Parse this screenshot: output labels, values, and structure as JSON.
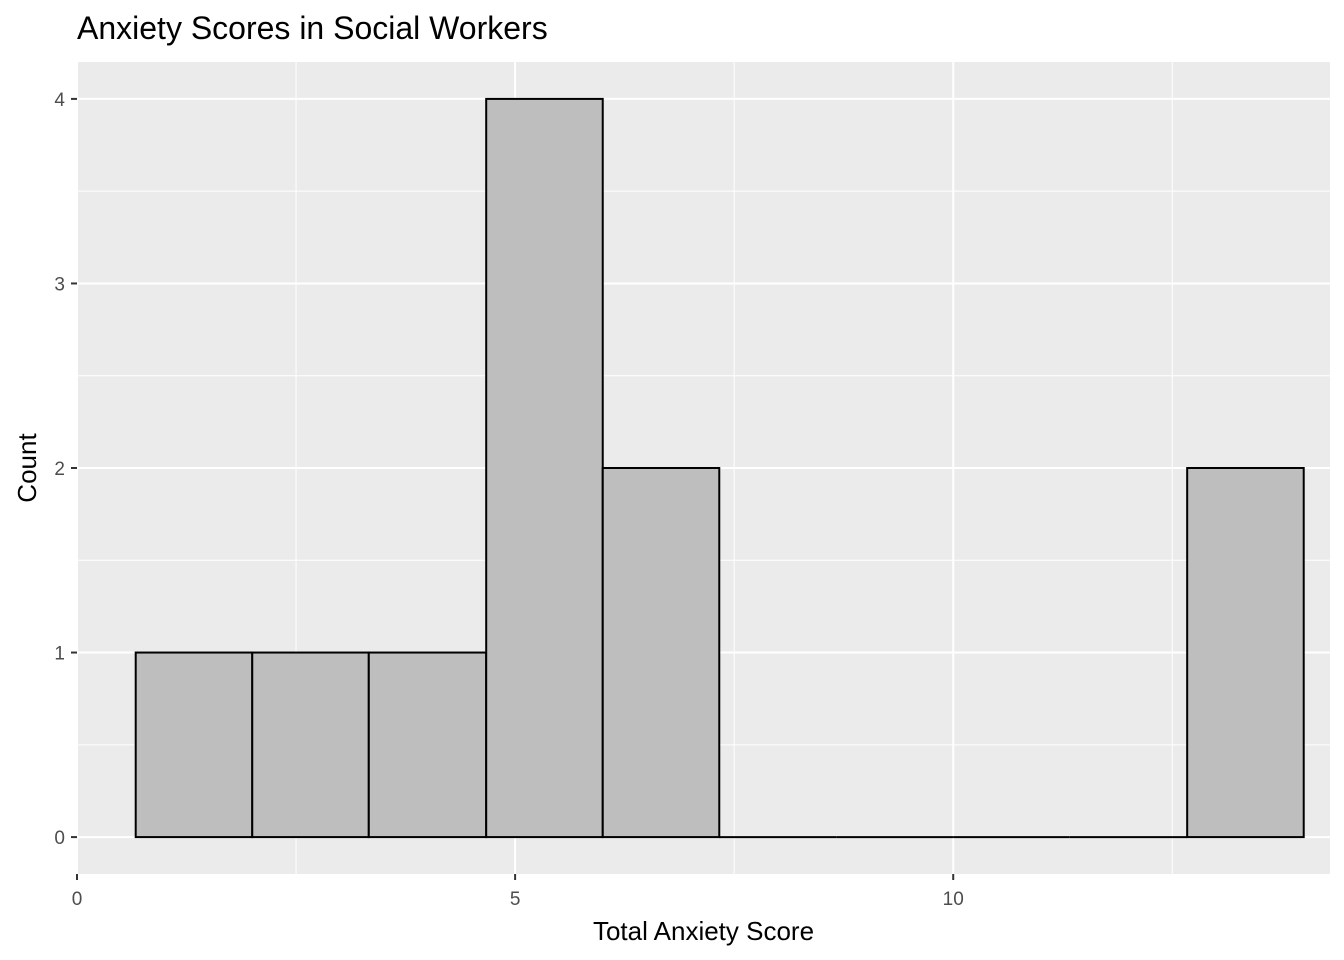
{
  "chart_data": {
    "type": "histogram",
    "title": "Anxiety Scores in Social Workers",
    "xlabel": "Total Anxiety Score",
    "ylabel": "Count",
    "xlim": [
      0,
      14.3
    ],
    "ylim": [
      -0.2,
      4.2
    ],
    "x_ticks": [
      0,
      5,
      10
    ],
    "y_ticks": [
      0,
      1,
      2,
      3,
      4
    ],
    "bins": [
      {
        "x0": 0.67,
        "x1": 2.0,
        "count": 1
      },
      {
        "x0": 2.0,
        "x1": 3.33,
        "count": 1
      },
      {
        "x0": 3.33,
        "x1": 4.67,
        "count": 1
      },
      {
        "x0": 4.67,
        "x1": 6.0,
        "count": 4
      },
      {
        "x0": 6.0,
        "x1": 7.33,
        "count": 2
      },
      {
        "x0": 7.33,
        "x1": 8.67,
        "count": 0
      },
      {
        "x0": 8.67,
        "x1": 10.0,
        "count": 0
      },
      {
        "x0": 10.0,
        "x1": 11.33,
        "count": 0
      },
      {
        "x0": 11.33,
        "x1": 12.67,
        "count": 0
      },
      {
        "x0": 12.67,
        "x1": 14.0,
        "count": 2
      }
    ],
    "bar_fill": "#bebebe",
    "bar_stroke": "#000000",
    "panel_background": "#ebebeb",
    "grid_color": "#ffffff",
    "grid": true,
    "legend": "none"
  }
}
